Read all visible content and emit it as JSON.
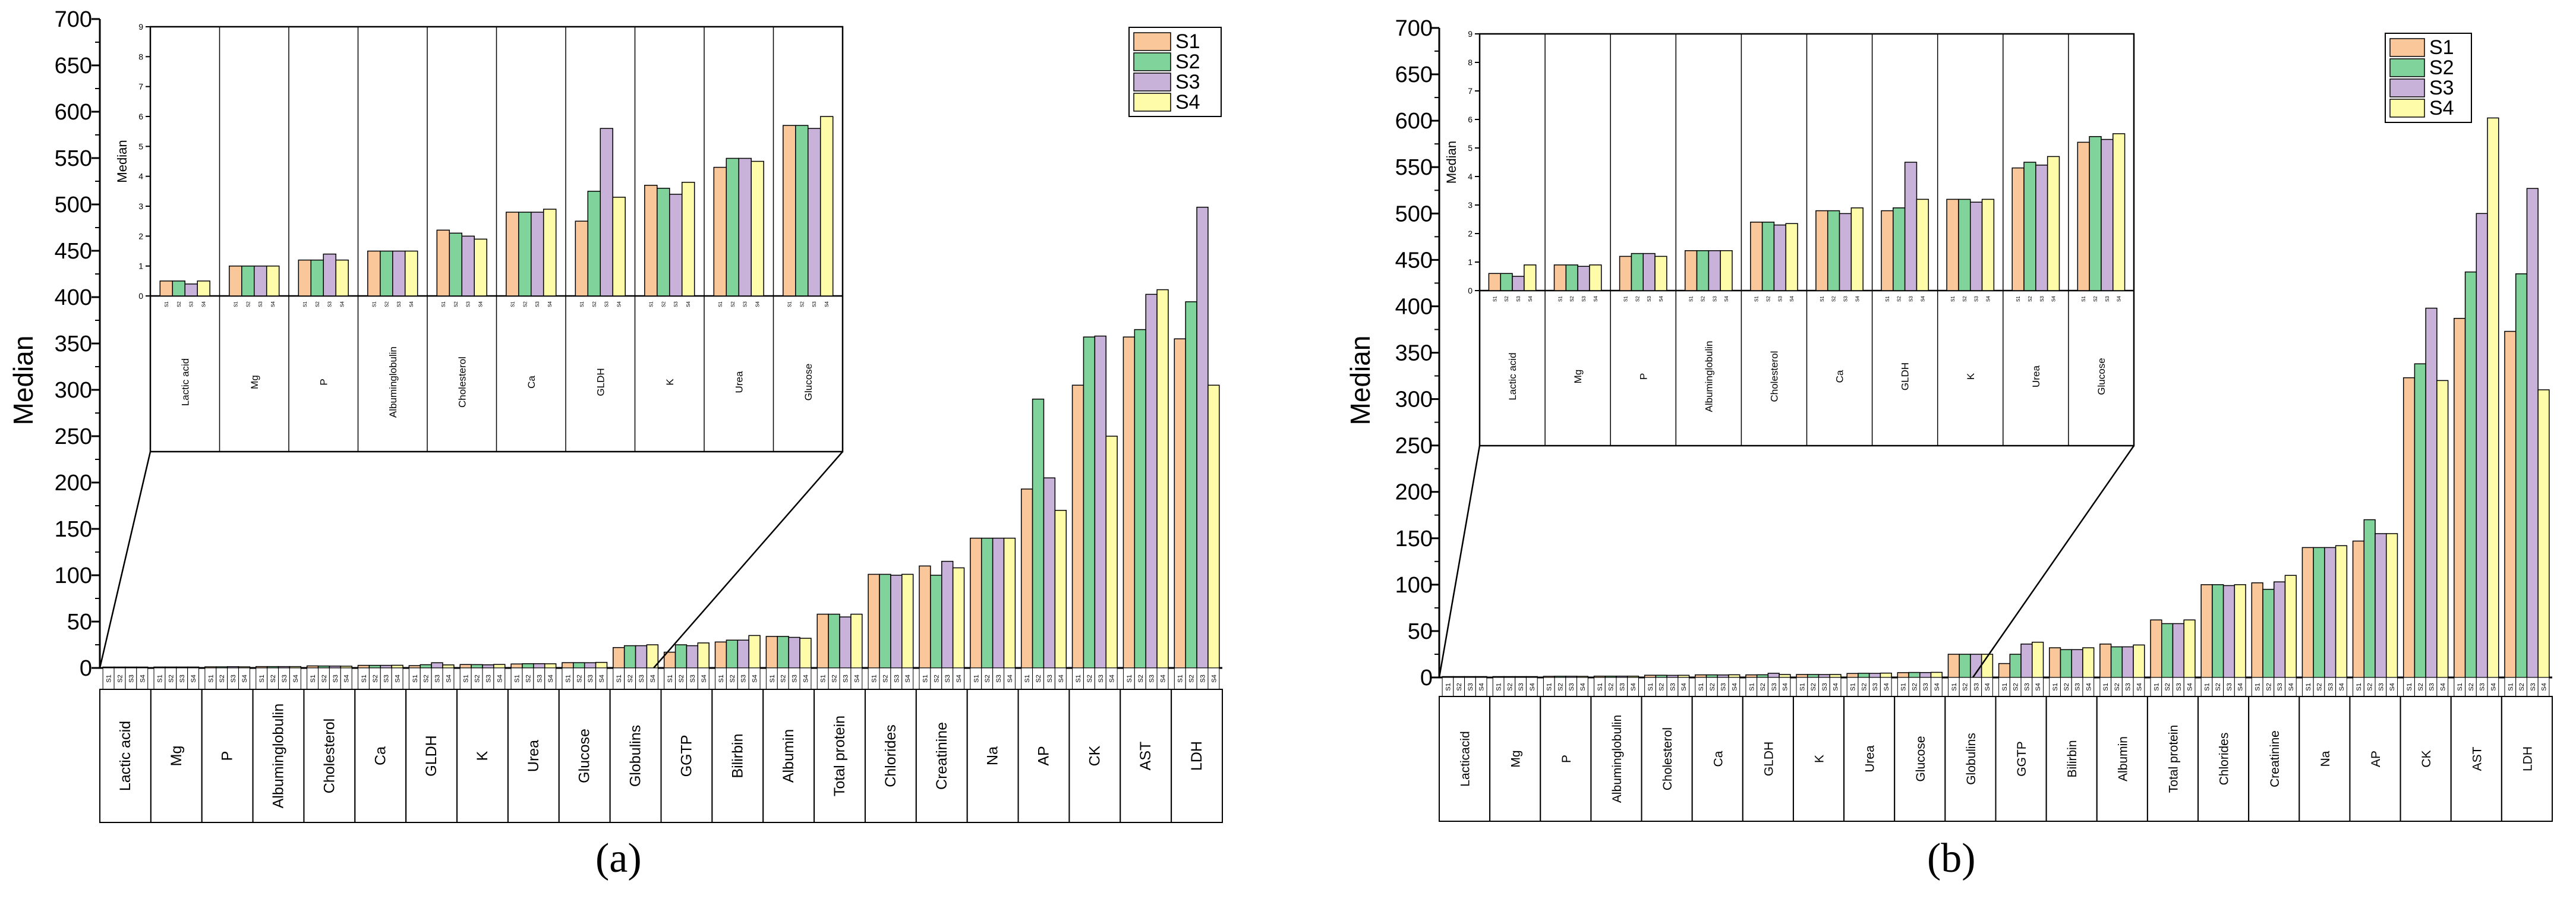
{
  "series_colors": {
    "S1": "#F9C79A",
    "S2": "#7FD39B",
    "S3": "#C8B2D9",
    "S4": "#FEFBA9"
  },
  "chart_data": [
    {
      "type": "bar",
      "panel_label": "(a)",
      "ylabel": "Median",
      "ylim": [
        0,
        700
      ],
      "yticks": [
        0,
        50,
        100,
        150,
        200,
        250,
        300,
        350,
        400,
        450,
        500,
        550,
        600,
        650,
        700
      ],
      "series_names": [
        "S1",
        "S2",
        "S3",
        "S4"
      ],
      "sample_labels": [
        "S1",
        "S2",
        "S3",
        "S4"
      ],
      "categories": [
        "Lactic acid",
        "Mg",
        "P",
        "Albuminglobulin",
        "Cholesterol",
        "Ca",
        "GLDH",
        "K",
        "Urea",
        "Glucose",
        "Globulins",
        "GGTP",
        "Bilirbin",
        "Albumin",
        "Total protein",
        "Chlorides",
        "Creatinine",
        "Na",
        "AP",
        "CK",
        "AST",
        "LDH"
      ],
      "values": [
        [
          0.5,
          0.5,
          0.4,
          0.5
        ],
        [
          1,
          1,
          1,
          1
        ],
        [
          1.2,
          1.2,
          1.4,
          1.2
        ],
        [
          1.5,
          1.5,
          1.5,
          1.5
        ],
        [
          2.2,
          2.1,
          2,
          1.9
        ],
        [
          2.8,
          2.8,
          2.8,
          2.9
        ],
        [
          2.5,
          3.5,
          5.6,
          3.3
        ],
        [
          3.7,
          3.6,
          3.4,
          3.8
        ],
        [
          4.3,
          4.6,
          4.6,
          4.5
        ],
        [
          5.7,
          5.7,
          5.6,
          6
        ],
        [
          22,
          24,
          24,
          25
        ],
        [
          17,
          25,
          24,
          27
        ],
        [
          28,
          30,
          30,
          35
        ],
        [
          34,
          34,
          33,
          32
        ],
        [
          58,
          58,
          55,
          58
        ],
        [
          101,
          101,
          100,
          101
        ],
        [
          110,
          100,
          115,
          108
        ],
        [
          140,
          140,
          140,
          140
        ],
        [
          193,
          290,
          205,
          170
        ],
        [
          305,
          357,
          358,
          250
        ],
        [
          357,
          365,
          403,
          408
        ],
        [
          355,
          395,
          497,
          305
        ]
      ],
      "inset": {
        "ylabel": "Median",
        "ylim": [
          0,
          9
        ],
        "yticks": [
          "0",
          "1",
          "2",
          "3",
          "4",
          "5",
          "6",
          "7",
          "8",
          "9"
        ],
        "categories": [
          "Lactic acid",
          "Mg",
          "P",
          "Albuminglobulin",
          "Cholesterol",
          "Ca",
          "GLDH",
          "K",
          "Urea",
          "Glucose"
        ],
        "values": [
          [
            0.5,
            0.5,
            0.4,
            0.5
          ],
          [
            1,
            1,
            1,
            1
          ],
          [
            1.2,
            1.2,
            1.4,
            1.2
          ],
          [
            1.5,
            1.5,
            1.5,
            1.5
          ],
          [
            2.2,
            2.1,
            2,
            1.9
          ],
          [
            2.8,
            2.8,
            2.8,
            2.9
          ],
          [
            2.5,
            3.5,
            5.6,
            3.3
          ],
          [
            3.7,
            3.6,
            3.4,
            3.8
          ],
          [
            4.3,
            4.6,
            4.6,
            4.5
          ],
          [
            5.7,
            5.7,
            5.6,
            6
          ]
        ]
      }
    },
    {
      "type": "bar",
      "panel_label": "(b)",
      "ylabel": "Median",
      "ylim": [
        0,
        700
      ],
      "yticks": [
        0,
        50,
        100,
        150,
        200,
        250,
        300,
        350,
        400,
        450,
        500,
        550,
        600,
        650,
        700
      ],
      "series_names": [
        "S1",
        "S2",
        "S3",
        "S4"
      ],
      "sample_labels": [
        "S1",
        "S2",
        "S3",
        "S4"
      ],
      "categories": [
        "Lacticacid",
        "Mg",
        "P",
        "Albuminglobulin",
        "Cholesterol",
        "Ca",
        "GLDH",
        "K",
        "Urea",
        "Glucose",
        "Globulins",
        "GGTP",
        "Bilirbin",
        "Albumin",
        "Total protein",
        "Chlorides",
        "Creatinine",
        "Na",
        "AP",
        "CK",
        "AST",
        "LDH"
      ],
      "values": [
        [
          0.6,
          0.6,
          0.5,
          0.9
        ],
        [
          0.9,
          0.9,
          0.85,
          0.9
        ],
        [
          1.2,
          1.3,
          1.3,
          1.2
        ],
        [
          1.4,
          1.4,
          1.4,
          1.4
        ],
        [
          2.4,
          2.4,
          2.3,
          2.35
        ],
        [
          2.8,
          2.8,
          2.7,
          2.9
        ],
        [
          2.8,
          2.9,
          4.5,
          3.2
        ],
        [
          3.2,
          3.2,
          3.1,
          3.2
        ],
        [
          4.3,
          4.5,
          4.4,
          4.7
        ],
        [
          5.2,
          5.4,
          5.3,
          5.5
        ],
        [
          25,
          25,
          25,
          25
        ],
        [
          15,
          25,
          36,
          38
        ],
        [
          32,
          30,
          30,
          32
        ],
        [
          36,
          33,
          33,
          35
        ],
        [
          62,
          58,
          58,
          62
        ],
        [
          100,
          100,
          99,
          100
        ],
        [
          102,
          95,
          103,
          110
        ],
        [
          140,
          140,
          140,
          142
        ],
        [
          147,
          170,
          155,
          155
        ],
        [
          323,
          338,
          398,
          320
        ],
        [
          387,
          437,
          500,
          603
        ],
        [
          373,
          435,
          527,
          310
        ]
      ],
      "inset": {
        "ylabel": "Median",
        "ylim": [
          0,
          9
        ],
        "yticks": [
          "0",
          "1",
          "2",
          "3",
          "4",
          "5",
          "6",
          "7",
          "8",
          "9"
        ],
        "categories": [
          "Lactic acid",
          "Mg",
          "P",
          "Albuminglobulin",
          "Cholesterol",
          "Ca",
          "GLDH",
          "K",
          "Urea",
          "Glucose"
        ],
        "values": [
          [
            0.6,
            0.6,
            0.5,
            0.9
          ],
          [
            0.9,
            0.9,
            0.85,
            0.9
          ],
          [
            1.2,
            1.3,
            1.3,
            1.2
          ],
          [
            1.4,
            1.4,
            1.4,
            1.4
          ],
          [
            2.4,
            2.4,
            2.3,
            2.35
          ],
          [
            2.8,
            2.8,
            2.7,
            2.9
          ],
          [
            2.8,
            2.9,
            4.5,
            3.2
          ],
          [
            3.2,
            3.2,
            3.1,
            3.2
          ],
          [
            4.3,
            4.5,
            4.4,
            4.7
          ],
          [
            5.2,
            5.4,
            5.3,
            5.5
          ]
        ]
      }
    }
  ]
}
